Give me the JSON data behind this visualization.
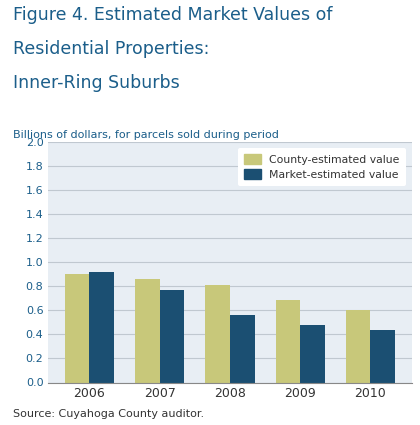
{
  "title_line1": "Figure 4. Estimated Market Values of",
  "title_line2": "Residential Properties:",
  "title_line3": "Inner-Ring Suburbs",
  "subtitle": "Billions of dollars, for parcels sold during period",
  "source": "Source: Cuyahoga County auditor.",
  "years": [
    2006,
    2007,
    2008,
    2009,
    2010
  ],
  "county_values": [
    0.9,
    0.86,
    0.81,
    0.69,
    0.6
  ],
  "market_values": [
    0.92,
    0.77,
    0.56,
    0.48,
    0.44
  ],
  "county_color": "#c8c87a",
  "market_color": "#1b4f72",
  "ylim": [
    0,
    2.0
  ],
  "yticks": [
    0.0,
    0.2,
    0.4,
    0.6,
    0.8,
    1.0,
    1.2,
    1.4,
    1.6,
    1.8,
    2.0
  ],
  "legend_labels": [
    "County-estimated value",
    "Market-estimated value"
  ],
  "title_color": "#1b5e8a",
  "subtitle_color": "#1b5e8a",
  "source_color": "#333333",
  "bar_width": 0.35,
  "grid_color": "#c0c8d0",
  "chart_bg": "#e8eef4"
}
